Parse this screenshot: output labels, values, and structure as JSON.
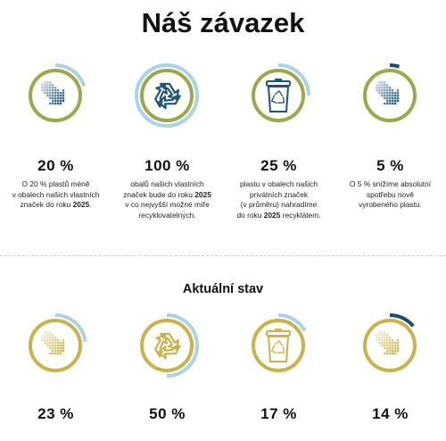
{
  "title": "Náš závazek",
  "commitments": [
    {
      "icon": "arrows-icon",
      "percent": "20 %",
      "progress": 0.2,
      "text": [
        [
          "O 20 % plastů méně",
          ""
        ],
        [
          "v obalech našich vlastních",
          ""
        ],
        [
          "značek do roku ",
          "2025",
          "."
        ]
      ]
    },
    {
      "icon": "recycle-icon",
      "percent": "100 %",
      "progress": 1.0,
      "text": [
        [
          "obalů našich vlastních"
        ],
        [
          "značek bude do roku ",
          "2025"
        ],
        [
          "v co nejvyšší možné míře"
        ],
        [
          "recyklovatelných."
        ]
      ]
    },
    {
      "icon": "recycling-bin-icon",
      "percent": "25 %",
      "progress": 0.25,
      "text": [
        [
          "plastu v obalech našich"
        ],
        [
          "privátních značek"
        ],
        [
          "(v průměru) nahradíme"
        ],
        [
          "do roku ",
          "2025",
          " recyklátem."
        ]
      ]
    },
    {
      "icon": "arrows-icon",
      "percent": "5 %",
      "progress": 0.05,
      "text": [
        [
          "O 5 % snížíme absolutní"
        ],
        [
          "spotřebu nově"
        ],
        [
          "vyrobeného plastu."
        ]
      ]
    }
  ],
  "status_title": "Aktuální stav",
  "status": [
    {
      "icon": "arrows-icon",
      "percent": "23 %",
      "progress": 0.23
    },
    {
      "icon": "recycle-icon",
      "percent": "50 %",
      "progress": 0.5
    },
    {
      "icon": "recycling-bin-icon",
      "percent": "17 %",
      "progress": 0.17
    },
    {
      "icon": "arrows-icon",
      "percent": "14 %",
      "progress": 0.14
    }
  ],
  "colors": {
    "ring_commit": "#9aa94a",
    "ring_status": "#c9b24a",
    "arc_light": "#a9d3e8",
    "arc_dark": "#1b4e6e",
    "icon_commit": "#1f5476",
    "icon_status": "#c9b24a"
  }
}
